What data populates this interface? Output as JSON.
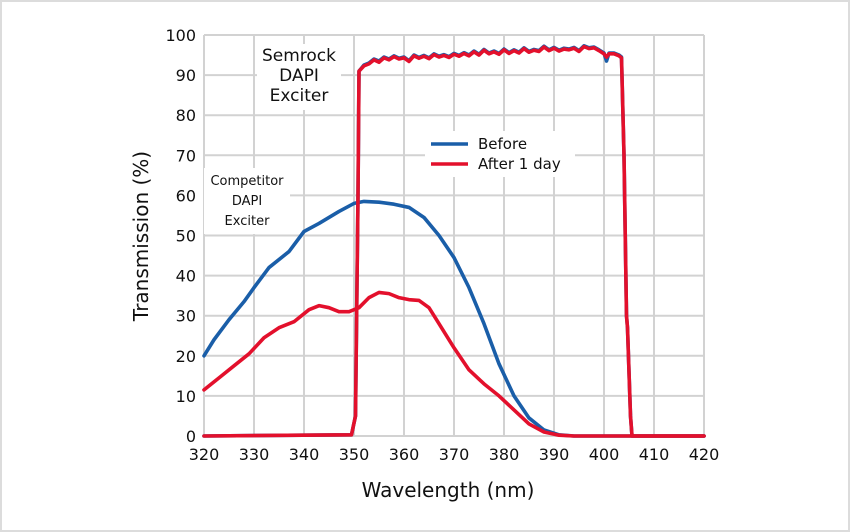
{
  "chart_data": {
    "type": "line",
    "title": "",
    "xlabel": "Wavelength (nm)",
    "ylabel": "Transmission (%)",
    "xlim": [
      320,
      420
    ],
    "ylim": [
      0,
      100
    ],
    "xticks": [
      320,
      330,
      340,
      350,
      360,
      370,
      380,
      390,
      400,
      410,
      420
    ],
    "yticks": [
      0,
      10,
      20,
      30,
      40,
      50,
      60,
      70,
      80,
      90,
      100
    ],
    "grid": true,
    "legend": {
      "placement": "center-top",
      "entries": [
        {
          "label": "Before",
          "color": "#1a5ea8"
        },
        {
          "label": "After 1 day",
          "color": "#e3102c"
        }
      ]
    },
    "annotations": [
      {
        "text_lines": [
          "Semrock",
          "DAPI",
          "Exciter"
        ],
        "anchor_x": 365,
        "anchor_y": 93
      },
      {
        "text_lines": [
          "Competitor",
          "DAPI",
          "Exciter"
        ],
        "anchor_x": 326,
        "anchor_y": 63
      }
    ],
    "series": [
      {
        "name": "Competitor Before",
        "legend_group": "Before",
        "color": "#1a5ea8",
        "x": [
          320,
          322,
          325,
          328,
          330,
          333,
          337,
          340,
          343,
          347,
          350,
          352,
          355,
          358,
          361,
          364,
          367,
          370,
          373,
          376,
          379,
          382,
          385,
          388,
          391,
          394,
          400,
          420
        ],
        "y": [
          20,
          24,
          29,
          33.5,
          37,
          42,
          46,
          51,
          53,
          56,
          58,
          58.5,
          58.3,
          57.8,
          57,
          54.5,
          50,
          44.5,
          37,
          28,
          18,
          10,
          4.5,
          1.5,
          0.3,
          0,
          0,
          0
        ]
      },
      {
        "name": "Competitor After 1 day",
        "legend_group": "After 1 day",
        "color": "#e3102c",
        "x": [
          320,
          323,
          326,
          329,
          332,
          335,
          338,
          341,
          343,
          345,
          347,
          349,
          351,
          353,
          355,
          357,
          359,
          361,
          363,
          365,
          367,
          370,
          373,
          376,
          379,
          382,
          385,
          388,
          391,
          394,
          420
        ],
        "y": [
          11.5,
          14.5,
          17.5,
          20.5,
          24.5,
          27,
          28.5,
          31.5,
          32.5,
          32,
          31,
          31,
          32,
          34.5,
          35.8,
          35.5,
          34.5,
          34,
          33.8,
          32,
          28,
          22,
          16.5,
          13,
          10,
          6.5,
          3,
          1,
          0.2,
          0,
          0
        ]
      },
      {
        "name": "Semrock Before",
        "legend_group": "Before",
        "color": "#1a5ea8",
        "x": [
          320,
          349.5,
          350.3,
          350.8,
          351,
          352,
          353,
          354,
          355,
          356,
          357,
          358,
          359,
          360,
          361,
          362,
          363,
          364,
          365,
          366,
          367,
          368,
          369,
          370,
          371,
          372,
          373,
          374,
          375,
          376,
          377,
          378,
          379,
          380,
          381,
          382,
          383,
          384,
          385,
          386,
          387,
          388,
          389,
          390,
          391,
          392,
          393,
          394,
          395,
          396,
          397,
          398,
          399,
          400,
          400.5,
          401,
          402,
          403,
          403.5,
          404,
          404.5,
          404.7,
          405.3,
          405.6,
          420
        ],
        "y": [
          0,
          0.3,
          5,
          60,
          91,
          92.5,
          93,
          94,
          93.5,
          94.5,
          94,
          94.8,
          94.2,
          94.5,
          93.6,
          95,
          94.4,
          94.9,
          94.3,
          95.3,
          94.7,
          95.1,
          94.6,
          95.4,
          94.9,
          95.6,
          95,
          96,
          95.2,
          96.4,
          95.5,
          96,
          95.4,
          96.5,
          95.6,
          96.3,
          95.7,
          96.8,
          95.9,
          96.4,
          96.1,
          97.2,
          96.3,
          96.9,
          96.2,
          96.7,
          96.5,
          96.9,
          96.1,
          97.3,
          96.8,
          97,
          96.3,
          95.5,
          93.5,
          95.5,
          95.5,
          95,
          94.5,
          70,
          30,
          27,
          5,
          0,
          0
        ]
      },
      {
        "name": "Semrock After 1 day",
        "legend_group": "After 1 day",
        "color": "#e3102c",
        "x": [
          320,
          349.5,
          350.3,
          350.8,
          351,
          352,
          353,
          354,
          355,
          356,
          357,
          358,
          359,
          360,
          361,
          362,
          363,
          364,
          365,
          366,
          367,
          368,
          369,
          370,
          371,
          372,
          373,
          374,
          375,
          376,
          377,
          378,
          379,
          380,
          381,
          382,
          383,
          384,
          385,
          386,
          387,
          388,
          389,
          390,
          391,
          392,
          393,
          394,
          395,
          396,
          397,
          398,
          399,
          400,
          400.5,
          401,
          402,
          403,
          403.5,
          404,
          404.5,
          404.7,
          405.3,
          405.6,
          420
        ],
        "y": [
          0,
          0.3,
          5,
          60,
          91,
          92.3,
          92.8,
          93.8,
          93.2,
          94.3,
          93.8,
          94.6,
          94,
          94.3,
          93.4,
          94.8,
          94.2,
          94.7,
          94.1,
          95.1,
          94.5,
          94.9,
          94.4,
          95.2,
          94.7,
          95.4,
          94.8,
          95.8,
          95,
          96.2,
          95.3,
          95.8,
          95.2,
          96.3,
          95.4,
          96.1,
          95.5,
          96.6,
          95.7,
          96.2,
          95.9,
          97,
          96.1,
          96.7,
          96,
          96.5,
          96.3,
          96.7,
          95.9,
          97.1,
          96.6,
          96.8,
          96.1,
          95.3,
          94.5,
          95.3,
          95.3,
          94.8,
          94.3,
          70,
          30,
          27,
          5,
          0,
          0
        ]
      }
    ]
  }
}
